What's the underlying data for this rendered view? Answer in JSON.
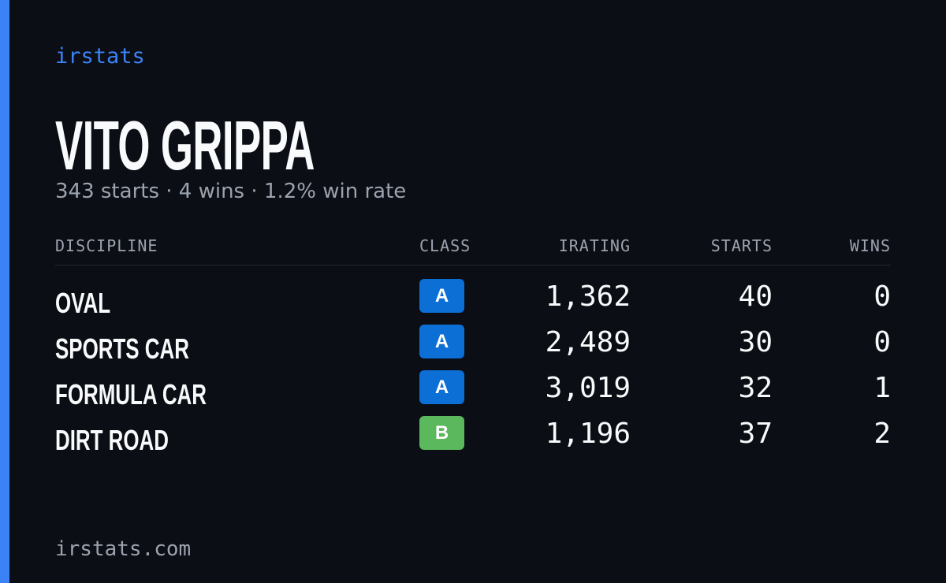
{
  "brand": "irstats",
  "driver": {
    "name": "VITO GRIPPA",
    "summary": "343 starts · 4 wins · 1.2% win rate"
  },
  "table": {
    "headers": [
      "DISCIPLINE",
      "CLASS",
      "IRATING",
      "STARTS",
      "WINS"
    ],
    "rows": [
      [
        "OVAL",
        "A",
        "1,362",
        "40",
        "0"
      ],
      [
        "SPORTS CAR",
        "A",
        "2,489",
        "30",
        "0"
      ],
      [
        "FORMULA CAR",
        "A",
        "3,019",
        "32",
        "1"
      ],
      [
        "DIRT ROAD",
        "B",
        "1,196",
        "37",
        "2"
      ]
    ]
  },
  "footer": "irstats.com"
}
